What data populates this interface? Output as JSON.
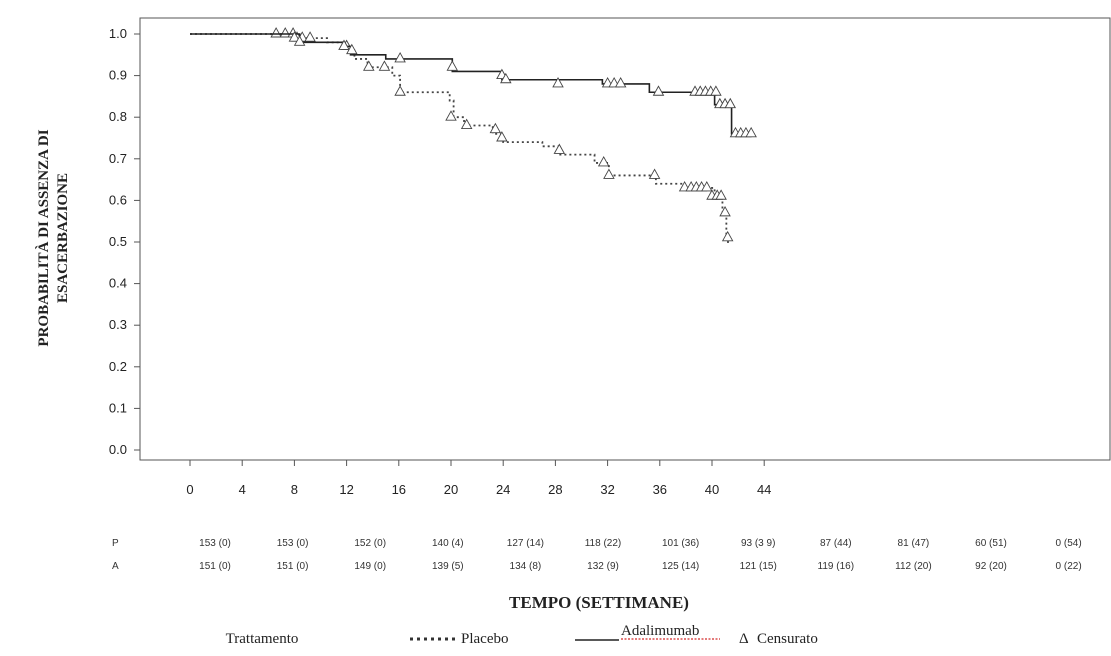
{
  "chart_data": {
    "type": "line",
    "title": "",
    "ylabel": "PROBABILITÀ DI ASSENZA DI ESACERBAZIONE",
    "ylabel_lines": [
      "PROBABILITÀ DI ASSENZA DI",
      "ESACERBAZIONE"
    ],
    "xlabel": "TEMPO (SETTIMANE)",
    "xlim": [
      0,
      44
    ],
    "ylim": [
      0.0,
      1.0
    ],
    "x_ticks": [
      0,
      4,
      8,
      12,
      16,
      20,
      24,
      28,
      32,
      36,
      40,
      44
    ],
    "y_ticks": [
      "0.0",
      "0.1",
      "0.2",
      "0.3",
      "0.4",
      "0.5",
      "0.6",
      "0.7",
      "0.8",
      "0.9",
      "1.0"
    ],
    "grid": false,
    "legend_position": "bottom",
    "series": [
      {
        "name": "Placebo",
        "line_style": "dotted",
        "color": "#444444",
        "steps": [
          [
            0,
            1.0
          ],
          [
            8.2,
            0.99
          ],
          [
            10.5,
            0.98
          ],
          [
            12.0,
            0.96
          ],
          [
            12.6,
            0.94
          ],
          [
            13.6,
            0.92
          ],
          [
            15.5,
            0.9
          ],
          [
            16.1,
            0.86
          ],
          [
            19.9,
            0.84
          ],
          [
            20.2,
            0.8
          ],
          [
            21.0,
            0.78
          ],
          [
            23.2,
            0.76
          ],
          [
            24.0,
            0.74
          ],
          [
            27.0,
            0.73
          ],
          [
            28.3,
            0.71
          ],
          [
            31.0,
            0.69
          ],
          [
            32.1,
            0.66
          ],
          [
            35.7,
            0.64
          ],
          [
            37.8,
            0.63
          ],
          [
            40.2,
            0.61
          ],
          [
            40.8,
            0.57
          ],
          [
            41.1,
            0.5
          ]
        ],
        "end_x": 41.3,
        "censored": [
          [
            6.6,
            1.0
          ],
          [
            7.3,
            1.0
          ],
          [
            7.9,
            1.0
          ],
          [
            8.2,
            0.99
          ],
          [
            8.6,
            0.99
          ],
          [
            9.2,
            0.99
          ],
          [
            12.0,
            0.97
          ],
          [
            13.7,
            0.92
          ],
          [
            14.9,
            0.92
          ],
          [
            16.1,
            0.86
          ],
          [
            20.0,
            0.8
          ],
          [
            21.2,
            0.78
          ],
          [
            23.4,
            0.77
          ],
          [
            23.9,
            0.75
          ],
          [
            28.3,
            0.72
          ],
          [
            31.7,
            0.69
          ],
          [
            32.1,
            0.66
          ],
          [
            35.6,
            0.66
          ],
          [
            37.9,
            0.63
          ],
          [
            38.4,
            0.63
          ],
          [
            38.8,
            0.63
          ],
          [
            39.2,
            0.63
          ],
          [
            39.6,
            0.63
          ],
          [
            40.0,
            0.61
          ],
          [
            40.4,
            0.61
          ],
          [
            40.7,
            0.61
          ],
          [
            41.0,
            0.57
          ],
          [
            41.2,
            0.51
          ]
        ]
      },
      {
        "name": "Adalimumab",
        "line_style": "solid",
        "color": "#222222",
        "steps": [
          [
            0,
            1.0
          ],
          [
            8.4,
            0.98
          ],
          [
            11.7,
            0.97
          ],
          [
            12.3,
            0.95
          ],
          [
            15.0,
            0.94
          ],
          [
            20.1,
            0.91
          ],
          [
            23.9,
            0.89
          ],
          [
            31.6,
            0.88
          ],
          [
            35.2,
            0.86
          ],
          [
            40.2,
            0.83
          ],
          [
            41.5,
            0.76
          ]
        ],
        "end_x": 42.5,
        "censored": [
          [
            8.0,
            0.99
          ],
          [
            8.4,
            0.98
          ],
          [
            11.8,
            0.97
          ],
          [
            12.4,
            0.96
          ],
          [
            16.1,
            0.94
          ],
          [
            20.1,
            0.92
          ],
          [
            23.9,
            0.9
          ],
          [
            24.2,
            0.89
          ],
          [
            28.2,
            0.88
          ],
          [
            32.0,
            0.88
          ],
          [
            32.5,
            0.88
          ],
          [
            33.0,
            0.88
          ],
          [
            35.9,
            0.86
          ],
          [
            38.7,
            0.86
          ],
          [
            39.1,
            0.86
          ],
          [
            39.5,
            0.86
          ],
          [
            39.9,
            0.86
          ],
          [
            40.3,
            0.86
          ],
          [
            40.6,
            0.83
          ],
          [
            41.0,
            0.83
          ],
          [
            41.4,
            0.83
          ],
          [
            41.8,
            0.76
          ],
          [
            42.2,
            0.76
          ],
          [
            42.6,
            0.76
          ],
          [
            43.0,
            0.76
          ]
        ]
      }
    ],
    "at_risk": {
      "rows": [
        {
          "label": "P",
          "values": [
            "153 (0)",
            "153 (0)",
            "152 (0)",
            "140 (4)",
            "127 (14)",
            "118 (22)",
            "101 (36)",
            "93 (3 9)",
            "87 (44)",
            "81 (47)",
            "60 (51)",
            "0 (54)"
          ]
        },
        {
          "label": "A",
          "values": [
            "151 (0)",
            "151 (0)",
            "149 (0)",
            "139 (5)",
            "134 (8)",
            "132 (9)",
            "125 (14)",
            "121 (15)",
            "119 (16)",
            "112 (20)",
            "92 (20)",
            "0 (22)"
          ]
        }
      ]
    },
    "legend": {
      "title": "Trattamento",
      "placebo": "Placebo",
      "adalimumab": "Adalimumab",
      "censored": "Censurato",
      "censored_symbol": "Δ"
    }
  }
}
